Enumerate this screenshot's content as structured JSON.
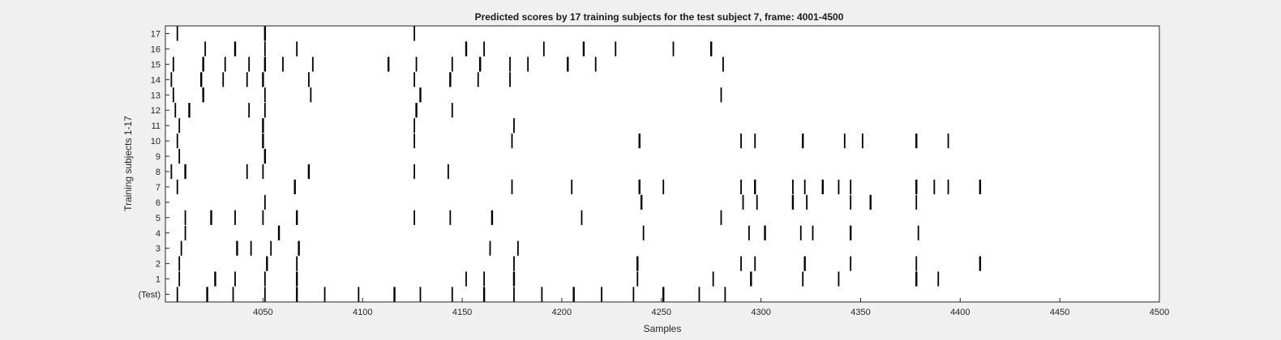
{
  "chart_data": {
    "type": "raster",
    "title": "Predicted scores by 17 training subjects for the test subject 7, frame: 4001-4500",
    "xlabel": "Samples",
    "ylabel": "Training subjects 1-17",
    "xlim": [
      4001,
      4500
    ],
    "xticks": [
      4050,
      4100,
      4150,
      4200,
      4250,
      4300,
      4350,
      4400,
      4450,
      4500
    ],
    "xtick_labels": [
      "4050",
      "4100",
      "4150",
      "4200",
      "4250",
      "4300",
      "4350",
      "4400",
      "4450",
      "4500"
    ],
    "grid": false,
    "rows": [
      {
        "label": "(Test)",
        "events": [
          4007,
          4022,
          4035,
          4051,
          4067,
          4081,
          4098,
          4116,
          4129,
          4145,
          4161,
          4176,
          4190,
          4206,
          4220,
          4236,
          4251,
          4269,
          4282
        ]
      },
      {
        "label": "1",
        "events": [
          4008,
          4026,
          4036,
          4051,
          4067,
          4152,
          4161,
          4176,
          4238,
          4276,
          4295,
          4321,
          4339,
          4378,
          4389
        ]
      },
      {
        "label": "2",
        "events": [
          4008,
          4052,
          4067,
          4176,
          4238,
          4290,
          4297,
          4322,
          4345,
          4378,
          4410
        ]
      },
      {
        "label": "3",
        "events": [
          4009,
          4037,
          4044,
          4054,
          4068,
          4164,
          4178
        ]
      },
      {
        "label": "4",
        "events": [
          4011,
          4058,
          4241,
          4294,
          4302,
          4320,
          4326,
          4345,
          4379
        ]
      },
      {
        "label": "5",
        "events": [
          4011,
          4024,
          4036,
          4050,
          4067,
          4126,
          4144,
          4165,
          4210,
          4280
        ]
      },
      {
        "label": "6",
        "events": [
          4051,
          4240,
          4291,
          4298,
          4316,
          4323,
          4345,
          4355,
          4378
        ]
      },
      {
        "label": "7",
        "events": [
          4007,
          4066,
          4175,
          4205,
          4239,
          4251,
          4290,
          4297,
          4316,
          4322,
          4331,
          4339,
          4345,
          4378,
          4387,
          4394,
          4410
        ]
      },
      {
        "label": "8",
        "events": [
          4004,
          4011,
          4042,
          4050,
          4073,
          4126,
          4143
        ]
      },
      {
        "label": "9",
        "events": [
          4008,
          4051
        ]
      },
      {
        "label": "10",
        "events": [
          4007,
          4050,
          4126,
          4175,
          4239,
          4290,
          4297,
          4321,
          4342,
          4351,
          4378,
          4394
        ]
      },
      {
        "label": "11",
        "events": [
          4008,
          4050,
          4126,
          4176
        ]
      },
      {
        "label": "12",
        "events": [
          4006,
          4013,
          4043,
          4051,
          4127,
          4145
        ]
      },
      {
        "label": "13",
        "events": [
          4005,
          4020,
          4051,
          4074,
          4129,
          4280
        ]
      },
      {
        "label": "14",
        "events": [
          4004,
          4019,
          4030,
          4042,
          4050,
          4073,
          4126,
          4144,
          4158,
          4174
        ]
      },
      {
        "label": "15",
        "events": [
          4005,
          4020,
          4031,
          4043,
          4051,
          4060,
          4075,
          4113,
          4127,
          4145,
          4159,
          4174,
          4183,
          4203,
          4217,
          4281
        ]
      },
      {
        "label": "16",
        "events": [
          4021,
          4036,
          4051,
          4067,
          4152,
          4161,
          4191,
          4211,
          4227,
          4256,
          4275
        ]
      },
      {
        "label": "17",
        "events": [
          4007,
          4051,
          4126
        ]
      }
    ]
  }
}
